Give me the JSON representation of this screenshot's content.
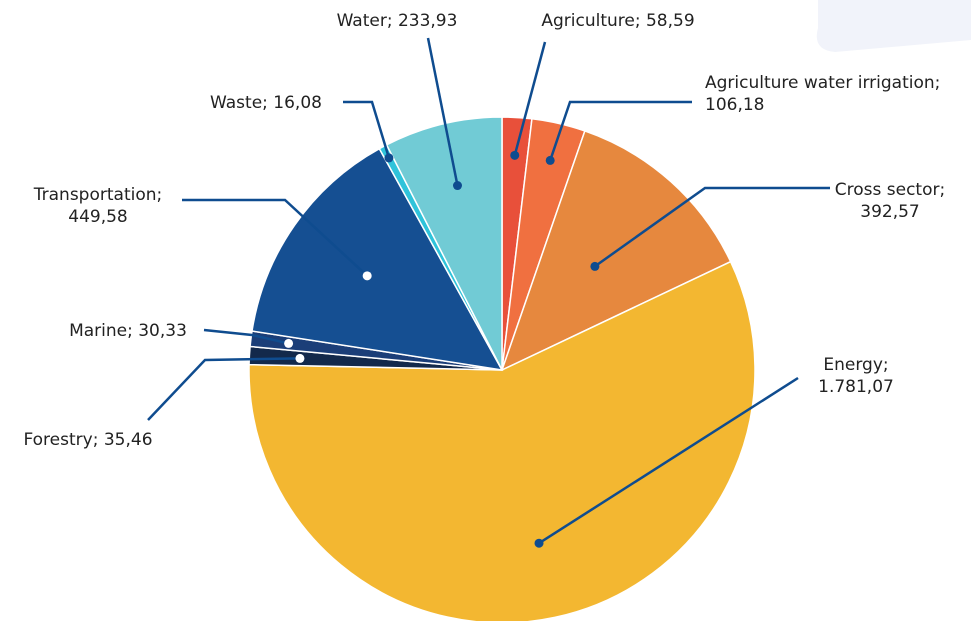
{
  "chart_data": {
    "type": "pie",
    "title": "",
    "decimal_separator": ",",
    "slices": [
      {
        "name": "Agriculture",
        "value": 58.59,
        "display": [
          "Agriculture; 58,59"
        ],
        "color": "#E8503A"
      },
      {
        "name": "Agriculture water irrigation",
        "value": 106.18,
        "display": [
          "Agriculture water irrigation;",
          "106,18"
        ],
        "color": "#F07040"
      },
      {
        "name": "Cross sector",
        "value": 392.57,
        "display": [
          "Cross sector;",
          "392,57"
        ],
        "color": "#E6883E"
      },
      {
        "name": "Energy",
        "value": 1781.07,
        "display": [
          "Energy;",
          "1.781,07"
        ],
        "color": "#F3B731"
      },
      {
        "name": "Forestry",
        "value": 35.46,
        "display": [
          "Forestry; 35,46"
        ],
        "color": "#13294B"
      },
      {
        "name": "Marine",
        "value": 30.33,
        "display": [
          "Marine; 30,33"
        ],
        "color": "#1B3E78"
      },
      {
        "name": "Transportation",
        "value": 449.58,
        "display": [
          "Transportation;",
          "449,58"
        ],
        "color": "#154F92"
      },
      {
        "name": "Waste",
        "value": 16.08,
        "display": [
          "Waste; 16,08"
        ],
        "color": "#2FC3DA"
      },
      {
        "name": "Water",
        "value": 233.93,
        "display": [
          "Water; 233,93"
        ],
        "color": "#71CBD5"
      }
    ],
    "label_line_color": "#0F4C8F"
  }
}
